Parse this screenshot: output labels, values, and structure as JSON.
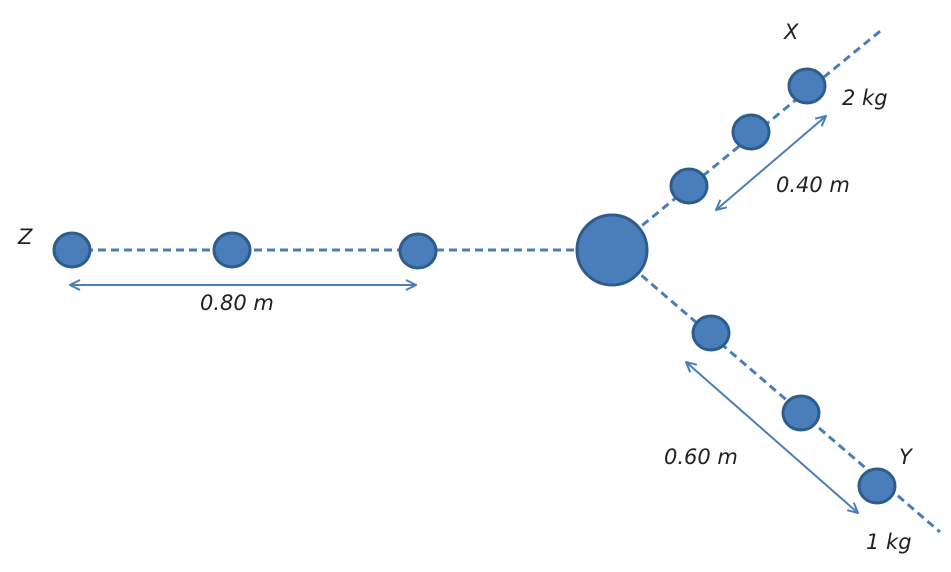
{
  "labels": {
    "x_name": "X",
    "y_name": "Y",
    "z_name": "Z",
    "mass_x": "2 kg",
    "mass_y": "1 kg",
    "dist_x": "0.40 m",
    "dist_y": "0.60 m",
    "dist_z": "0.80 m"
  },
  "colors": {
    "ball_fill": "#4a7ebb",
    "ball_stroke": "#2e5d8c",
    "line": "#4a7ebb",
    "text": "#222222"
  }
}
